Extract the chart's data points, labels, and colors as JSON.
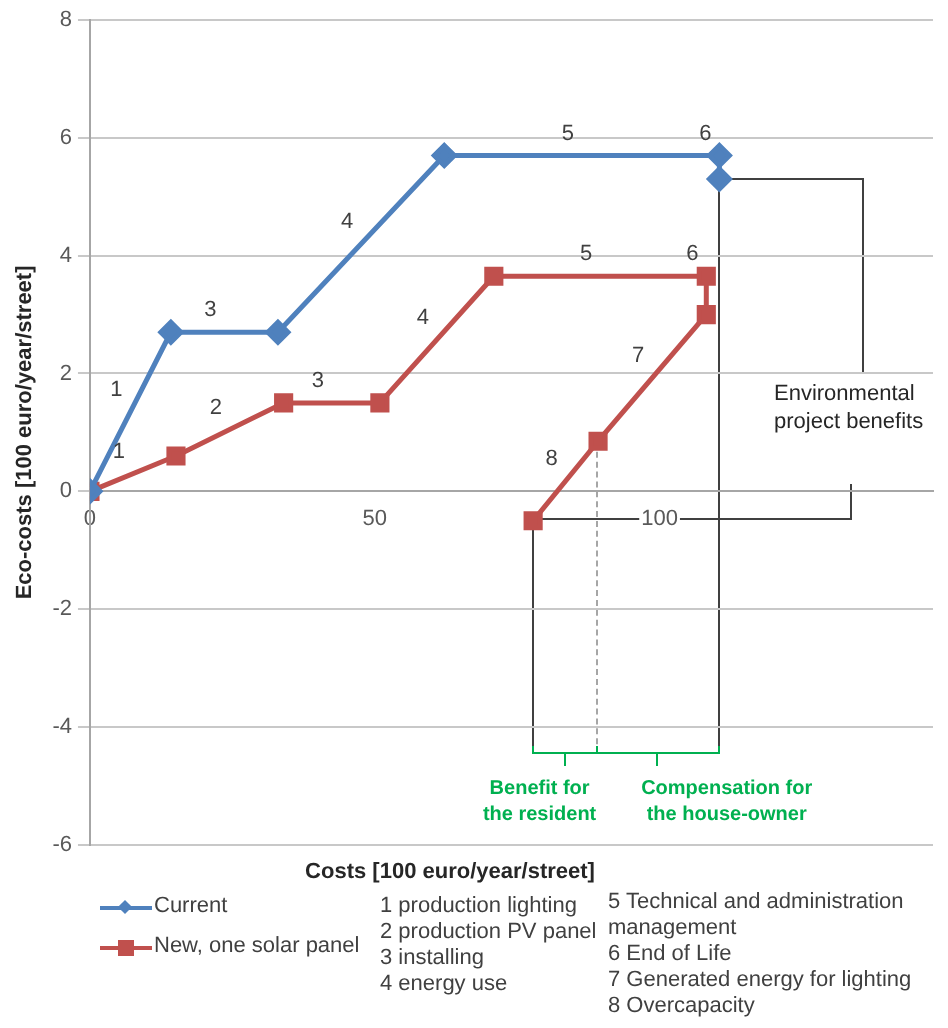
{
  "chart_data": {
    "type": "line",
    "xlabel": "Costs [100 euro/year/street]",
    "ylabel": "Eco-costs [100 euro/year/street]",
    "xlim": [
      0,
      148
    ],
    "xticks": [
      0,
      50,
      100
    ],
    "ylim": [
      -6,
      8
    ],
    "yticks": [
      -6,
      -4,
      -2,
      0,
      2,
      4,
      6,
      8
    ],
    "grid": "y",
    "legend": "bottom left",
    "line_style": "solid",
    "series": [
      {
        "name": "Current",
        "color": "#4f81bd",
        "marker": "diamond",
        "x": [
          0,
          14.2,
          33,
          62.2,
          110.5,
          110.5
        ],
        "values": [
          0,
          2.7,
          2.7,
          5.7,
          5.7,
          5.3
        ]
      },
      {
        "name": "New, one solar panel",
        "color": "#c0504d",
        "marker": "square",
        "x": [
          0,
          15.1,
          34,
          50.9,
          70.9,
          108.2,
          108.2,
          89.2,
          77.8
        ],
        "values": [
          0,
          0.6,
          1.5,
          1.5,
          3.65,
          3.65,
          3.0,
          0.85,
          -0.5
        ]
      }
    ],
    "annotations": [
      {
        "text": "1",
        "x": 7.1,
        "y": 1.35
      },
      {
        "text": "3",
        "x": 23.6,
        "y": 2.7
      },
      {
        "text": "4",
        "x": 47.6,
        "y": 4.2
      },
      {
        "text": "5",
        "x": 86.35,
        "y": 5.7
      },
      {
        "text": "6",
        "x": 110.5,
        "y": 5.7
      },
      {
        "text": "1",
        "x": 7.55,
        "y": 0.3
      },
      {
        "text": "2",
        "x": 24.55,
        "y": 1.05
      },
      {
        "text": "3",
        "x": 42.45,
        "y": 1.5
      },
      {
        "text": "4",
        "x": 60.9,
        "y": 2.575
      },
      {
        "text": "5",
        "x": 89.55,
        "y": 3.65
      },
      {
        "text": "6",
        "x": 108.2,
        "y": 3.65
      },
      {
        "text": "7",
        "x": 98.7,
        "y": 1.925
      },
      {
        "text": "8",
        "x": 83.5,
        "y": 0.175
      },
      "Environmental project benefits",
      {
        "text": "Benefit for the resident",
        "x": 77.8,
        "y": -0.5
      },
      "Compensation for the house-owner",
      "1 production lighting",
      "2 production PV panel",
      "3 installing",
      "4 energy use",
      "5 Technical and administration management",
      "6 End of Life",
      "7 Generated energy for lighting",
      "8 Overcapacity"
    ]
  }
}
